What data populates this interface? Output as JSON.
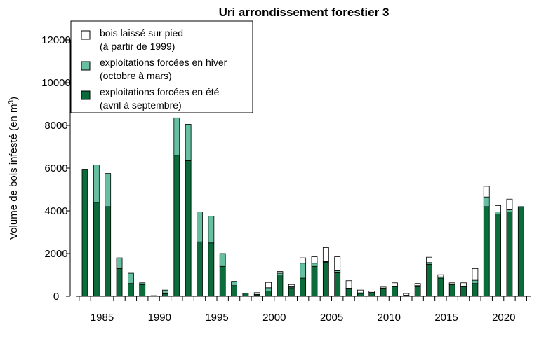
{
  "chart_data": {
    "type": "bar",
    "stacked": true,
    "title": "Uri arrondissement forestier 3",
    "ylabel": "Volume de bois infesté (en m",
    "ylabel_sup": "3",
    "ylabel_close": ")",
    "xlabel": "",
    "ylim": [
      0,
      12000
    ],
    "yticks": [
      "0",
      "2000",
      "4000",
      "6000",
      "8000",
      "10000",
      "12000"
    ],
    "xticks": [
      "1985",
      "1990",
      "1995",
      "2000",
      "2005",
      "2010",
      "2015",
      "2020"
    ],
    "years": [
      1984,
      1985,
      1986,
      1987,
      1988,
      1989,
      1990,
      1991,
      1992,
      1993,
      1994,
      1995,
      1996,
      1997,
      1998,
      1999,
      2000,
      2001,
      2002,
      2003,
      2004,
      2005,
      2006,
      2007,
      2008,
      2009,
      2010,
      2011,
      2012,
      2013,
      2014,
      2015,
      2016,
      2017,
      2018,
      2019,
      2020,
      2021,
      2022
    ],
    "series": [
      {
        "key": "ete",
        "name": "exploitations forcées en été",
        "name2": "(avril à septembre)",
        "color": "#0b6b3a",
        "values": [
          5950,
          4400,
          4200,
          1300,
          600,
          550,
          30,
          120,
          6600,
          6350,
          2550,
          2500,
          1400,
          500,
          150,
          60,
          250,
          1000,
          400,
          850,
          1400,
          1600,
          1100,
          350,
          130,
          150,
          350,
          450,
          50,
          450,
          1500,
          850,
          550,
          450,
          600,
          4200,
          3850,
          3950,
          4200
        ]
      },
      {
        "key": "hiver",
        "name": "exploitations forcées en hiver",
        "name2": "(octobre à mars)",
        "color": "#66bfa0",
        "values": [
          0,
          1750,
          1550,
          500,
          480,
          80,
          0,
          170,
          1750,
          1700,
          1400,
          1250,
          600,
          200,
          0,
          30,
          150,
          80,
          50,
          700,
          150,
          30,
          100,
          30,
          30,
          30,
          30,
          30,
          0,
          50,
          80,
          60,
          30,
          30,
          150,
          450,
          100,
          100,
          0
        ]
      },
      {
        "key": "sur_pied",
        "name": "bois laissé sur pied",
        "name2": "(à partir de 1999)",
        "color": "#ffffff",
        "values": [
          0,
          0,
          0,
          0,
          0,
          0,
          0,
          0,
          0,
          0,
          0,
          0,
          0,
          0,
          0,
          80,
          250,
          80,
          100,
          250,
          300,
          650,
          650,
          350,
          130,
          60,
          50,
          150,
          80,
          100,
          250,
          100,
          50,
          150,
          550,
          500,
          300,
          500,
          0
        ]
      }
    ],
    "legend_position": "top-left"
  }
}
